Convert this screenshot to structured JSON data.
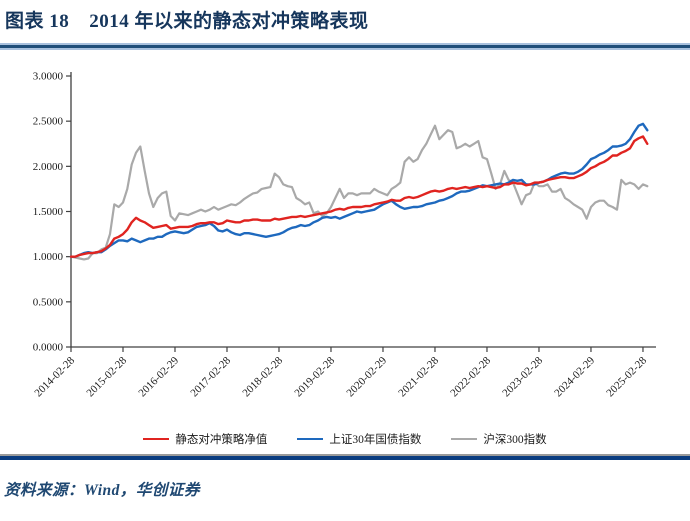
{
  "figure": {
    "label": "图表 18",
    "title": "2014 年以来的静态对冲策略表现",
    "source_note": "资料来源：Wind，华创证券"
  },
  "colors": {
    "title_navy": "#16365C",
    "rule_navy_top": "#1F4E79",
    "rule_navy_bottom": "#0A3C80",
    "rule_light_blue": "#A9C1DE",
    "rule_gray": "#9A9A9A",
    "axis_color": "#404040",
    "strategy_red": "#E02420",
    "bond_blue": "#1E69BE",
    "csi300_gray": "#A9A9A9"
  },
  "chart_data": {
    "type": "line",
    "title": "",
    "xlabel": "",
    "ylabel": "",
    "grid": false,
    "legend_position": "bottom",
    "x_frequency": "monthly",
    "x_start": "2014-02-28",
    "x_end": "2025-03-31",
    "ylim": [
      0.0,
      3.0
    ],
    "y_tick_step": 0.5,
    "y_tick_labels": [
      "0.0000",
      "0.5000",
      "1.0000",
      "1.5000",
      "2.0000",
      "2.5000",
      "3.0000"
    ],
    "x_tick_labels": [
      "2014-02-28",
      "2015-02-28",
      "2016-02-29",
      "2017-02-28",
      "2018-02-28",
      "2019-02-28",
      "2020-02-29",
      "2021-02-28",
      "2022-02-28",
      "2023-02-28",
      "2024-02-29",
      "2025-02-28"
    ],
    "x_ticks_every_n_points": 12,
    "series": [
      {
        "name": "静态对冲策略净值",
        "color": "#E02420",
        "values": [
          1.0,
          1.0,
          1.02,
          1.03,
          1.04,
          1.04,
          1.05,
          1.06,
          1.09,
          1.13,
          1.2,
          1.22,
          1.25,
          1.3,
          1.38,
          1.43,
          1.4,
          1.38,
          1.35,
          1.32,
          1.33,
          1.34,
          1.35,
          1.31,
          1.32,
          1.33,
          1.33,
          1.33,
          1.34,
          1.36,
          1.37,
          1.37,
          1.38,
          1.38,
          1.36,
          1.37,
          1.4,
          1.39,
          1.38,
          1.38,
          1.4,
          1.4,
          1.41,
          1.41,
          1.4,
          1.4,
          1.4,
          1.42,
          1.41,
          1.42,
          1.43,
          1.44,
          1.44,
          1.45,
          1.44,
          1.45,
          1.46,
          1.47,
          1.48,
          1.49,
          1.5,
          1.52,
          1.53,
          1.52,
          1.54,
          1.55,
          1.55,
          1.55,
          1.56,
          1.56,
          1.58,
          1.59,
          1.6,
          1.61,
          1.63,
          1.62,
          1.62,
          1.65,
          1.66,
          1.65,
          1.66,
          1.68,
          1.7,
          1.72,
          1.73,
          1.72,
          1.73,
          1.75,
          1.76,
          1.75,
          1.76,
          1.77,
          1.76,
          1.77,
          1.78,
          1.77,
          1.78,
          1.77,
          1.76,
          1.77,
          1.8,
          1.8,
          1.82,
          1.81,
          1.81,
          1.79,
          1.8,
          1.82,
          1.82,
          1.83,
          1.85,
          1.86,
          1.87,
          1.88,
          1.88,
          1.87,
          1.87,
          1.89,
          1.91,
          1.94,
          1.98,
          2.0,
          2.03,
          2.05,
          2.08,
          2.12,
          2.12,
          2.15,
          2.17,
          2.2,
          2.28,
          2.31,
          2.33,
          2.25
        ]
      },
      {
        "name": "上证30年国债指数",
        "color": "#1E69BE",
        "values": [
          1.0,
          1.0,
          1.02,
          1.04,
          1.05,
          1.04,
          1.05,
          1.05,
          1.08,
          1.12,
          1.15,
          1.18,
          1.18,
          1.17,
          1.2,
          1.18,
          1.16,
          1.18,
          1.2,
          1.2,
          1.22,
          1.22,
          1.25,
          1.27,
          1.28,
          1.27,
          1.26,
          1.27,
          1.3,
          1.33,
          1.34,
          1.35,
          1.37,
          1.34,
          1.29,
          1.28,
          1.3,
          1.27,
          1.25,
          1.24,
          1.26,
          1.26,
          1.25,
          1.24,
          1.23,
          1.22,
          1.23,
          1.24,
          1.25,
          1.27,
          1.3,
          1.32,
          1.33,
          1.35,
          1.34,
          1.35,
          1.38,
          1.4,
          1.43,
          1.44,
          1.43,
          1.44,
          1.42,
          1.44,
          1.46,
          1.48,
          1.5,
          1.49,
          1.5,
          1.51,
          1.52,
          1.55,
          1.58,
          1.6,
          1.62,
          1.58,
          1.55,
          1.53,
          1.54,
          1.55,
          1.55,
          1.56,
          1.58,
          1.59,
          1.6,
          1.62,
          1.63,
          1.65,
          1.67,
          1.7,
          1.72,
          1.72,
          1.73,
          1.75,
          1.77,
          1.79,
          1.78,
          1.79,
          1.8,
          1.81,
          1.8,
          1.82,
          1.85,
          1.84,
          1.85,
          1.8,
          1.8,
          1.8,
          1.82,
          1.83,
          1.85,
          1.88,
          1.9,
          1.92,
          1.93,
          1.92,
          1.92,
          1.94,
          1.97,
          2.02,
          2.08,
          2.1,
          2.13,
          2.15,
          2.18,
          2.22,
          2.22,
          2.23,
          2.25,
          2.3,
          2.38,
          2.45,
          2.47,
          2.4
        ]
      },
      {
        "name": "沪深300指数",
        "color": "#A9A9A9",
        "values": [
          1.0,
          0.99,
          0.98,
          0.97,
          0.98,
          1.04,
          1.04,
          1.08,
          1.1,
          1.25,
          1.58,
          1.55,
          1.6,
          1.75,
          2.02,
          2.15,
          2.22,
          1.95,
          1.7,
          1.55,
          1.65,
          1.7,
          1.72,
          1.45,
          1.4,
          1.48,
          1.47,
          1.46,
          1.48,
          1.5,
          1.52,
          1.5,
          1.52,
          1.55,
          1.52,
          1.54,
          1.56,
          1.58,
          1.57,
          1.6,
          1.64,
          1.67,
          1.7,
          1.71,
          1.75,
          1.76,
          1.77,
          1.92,
          1.88,
          1.8,
          1.78,
          1.77,
          1.65,
          1.62,
          1.58,
          1.6,
          1.48,
          1.5,
          1.45,
          1.48,
          1.55,
          1.65,
          1.75,
          1.65,
          1.7,
          1.7,
          1.68,
          1.7,
          1.7,
          1.7,
          1.75,
          1.72,
          1.7,
          1.68,
          1.75,
          1.78,
          1.82,
          2.05,
          2.1,
          2.05,
          2.08,
          2.18,
          2.25,
          2.35,
          2.45,
          2.3,
          2.35,
          2.4,
          2.38,
          2.2,
          2.22,
          2.25,
          2.22,
          2.25,
          2.28,
          2.1,
          2.08,
          1.92,
          1.75,
          1.8,
          1.95,
          1.85,
          1.82,
          1.7,
          1.58,
          1.68,
          1.7,
          1.82,
          1.78,
          1.78,
          1.8,
          1.72,
          1.72,
          1.75,
          1.65,
          1.62,
          1.58,
          1.55,
          1.52,
          1.42,
          1.55,
          1.6,
          1.62,
          1.62,
          1.57,
          1.55,
          1.52,
          1.85,
          1.8,
          1.82,
          1.8,
          1.75,
          1.8,
          1.78
        ]
      }
    ]
  }
}
